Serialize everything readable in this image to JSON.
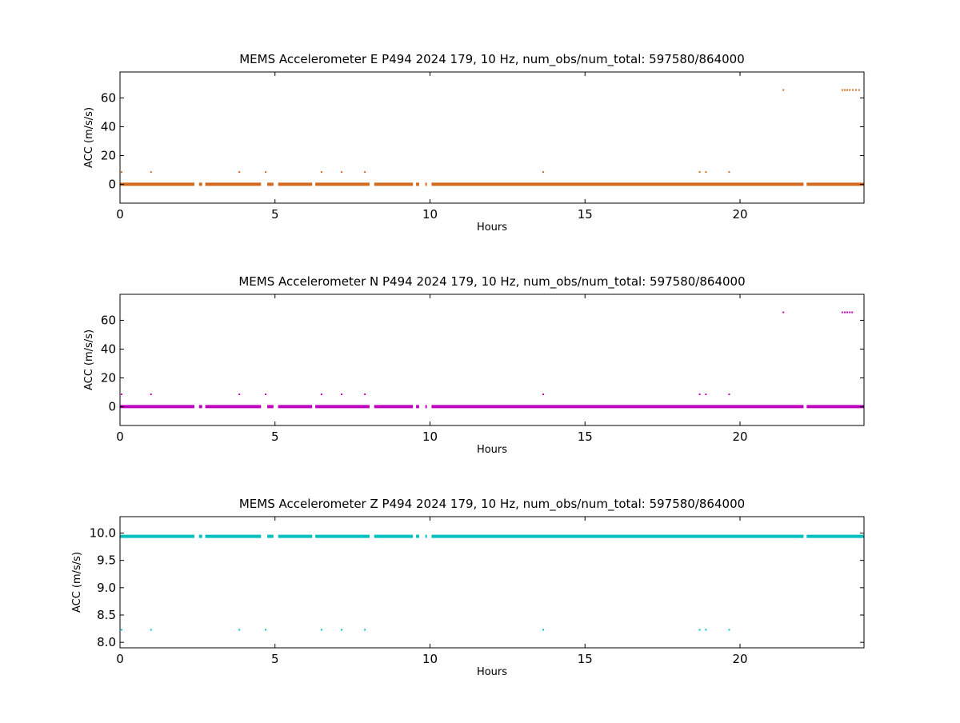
{
  "chart_data": [
    {
      "type": "scatter",
      "title": "MEMS Accelerometer E P494 2024 179, 10 Hz, num_obs/num_total: 597580/864000",
      "xlabel": "Hours",
      "ylabel": "ACC (m/s/s)",
      "xlim": [
        0,
        24
      ],
      "ylim": [
        -13,
        78
      ],
      "xticks": [
        0,
        5,
        10,
        15,
        20
      ],
      "yticks": [
        0,
        20,
        40,
        60
      ],
      "color": "#d2691e",
      "baseline": {
        "y": 0.1,
        "segments": [
          [
            0.0,
            2.4
          ],
          [
            2.55,
            2.65
          ],
          [
            2.75,
            4.55
          ],
          [
            4.75,
            4.95
          ],
          [
            5.1,
            6.2
          ],
          [
            6.3,
            8.05
          ],
          [
            8.2,
            9.45
          ],
          [
            9.55,
            9.65
          ],
          [
            9.85,
            9.9
          ],
          [
            10.05,
            22.05
          ],
          [
            22.15,
            24.0
          ]
        ]
      },
      "points": [
        {
          "x": 0.05,
          "y": 8.6
        },
        {
          "x": 1.0,
          "y": 8.6
        },
        {
          "x": 3.85,
          "y": 8.6
        },
        {
          "x": 4.7,
          "y": 8.6
        },
        {
          "x": 6.5,
          "y": 8.6
        },
        {
          "x": 7.15,
          "y": 8.6
        },
        {
          "x": 7.9,
          "y": 8.6
        },
        {
          "x": 13.65,
          "y": 8.6
        },
        {
          "x": 18.7,
          "y": 8.6
        },
        {
          "x": 18.9,
          "y": 8.6
        },
        {
          "x": 19.65,
          "y": 8.6
        },
        {
          "x": 21.4,
          "y": 65.5
        },
        {
          "x": 23.3,
          "y": 65.5
        },
        {
          "x": 23.38,
          "y": 65.5
        },
        {
          "x": 23.46,
          "y": 65.5
        },
        {
          "x": 23.54,
          "y": 65.5
        },
        {
          "x": 23.64,
          "y": 65.5
        },
        {
          "x": 23.74,
          "y": 65.5
        },
        {
          "x": 23.84,
          "y": 65.5
        }
      ]
    },
    {
      "type": "scatter",
      "title": "MEMS Accelerometer N P494 2024 179, 10 Hz, num_obs/num_total: 597580/864000",
      "xlabel": "Hours",
      "ylabel": "ACC (m/s/s)",
      "xlim": [
        0,
        24
      ],
      "ylim": [
        -13,
        78
      ],
      "xticks": [
        0,
        5,
        10,
        15,
        20
      ],
      "yticks": [
        0,
        20,
        40,
        60
      ],
      "color": "#bf00bf",
      "baseline": {
        "y": 0.1,
        "segments": [
          [
            0.0,
            2.4
          ],
          [
            2.55,
            2.65
          ],
          [
            2.75,
            4.55
          ],
          [
            4.75,
            4.95
          ],
          [
            5.1,
            6.2
          ],
          [
            6.3,
            8.05
          ],
          [
            8.2,
            9.45
          ],
          [
            9.55,
            9.65
          ],
          [
            9.85,
            9.9
          ],
          [
            10.05,
            22.05
          ],
          [
            22.15,
            24.0
          ]
        ]
      },
      "points": [
        {
          "x": 0.05,
          "y": 8.6
        },
        {
          "x": 1.0,
          "y": 8.6
        },
        {
          "x": 3.85,
          "y": 8.6
        },
        {
          "x": 4.7,
          "y": 8.6
        },
        {
          "x": 6.5,
          "y": 8.6
        },
        {
          "x": 7.15,
          "y": 8.6
        },
        {
          "x": 7.9,
          "y": 8.6
        },
        {
          "x": 13.65,
          "y": 8.6
        },
        {
          "x": 18.7,
          "y": 8.6
        },
        {
          "x": 18.9,
          "y": 8.6
        },
        {
          "x": 19.65,
          "y": 8.6
        },
        {
          "x": 21.4,
          "y": 65.5
        },
        {
          "x": 23.3,
          "y": 65.5
        },
        {
          "x": 23.38,
          "y": 65.5
        },
        {
          "x": 23.46,
          "y": 65.5
        },
        {
          "x": 23.54,
          "y": 65.5
        },
        {
          "x": 23.62,
          "y": 65.5
        }
      ]
    },
    {
      "type": "scatter",
      "title": "MEMS Accelerometer Z P494 2024 179, 10 Hz, num_obs/num_total: 597580/864000",
      "xlabel": "Hours",
      "ylabel": "ACC (m/s/s)",
      "xlim": [
        0,
        24
      ],
      "ylim": [
        7.9,
        10.3
      ],
      "xticks": [
        0,
        5,
        10,
        15,
        20
      ],
      "yticks": [
        8.0,
        8.5,
        9.0,
        9.5,
        10.0
      ],
      "ytick_labels": [
        "8.0",
        "8.5",
        "9.0",
        "9.5",
        "10.0"
      ],
      "color": "#00bfbf",
      "baseline": {
        "y": 9.94,
        "segments": [
          [
            0.0,
            2.4
          ],
          [
            2.55,
            2.65
          ],
          [
            2.75,
            4.55
          ],
          [
            4.75,
            4.95
          ],
          [
            5.1,
            6.2
          ],
          [
            6.3,
            8.05
          ],
          [
            8.2,
            9.45
          ],
          [
            9.55,
            9.65
          ],
          [
            9.85,
            9.9
          ],
          [
            10.05,
            22.05
          ],
          [
            22.15,
            24.0
          ]
        ]
      },
      "points": [
        {
          "x": 0.05,
          "y": 8.23
        },
        {
          "x": 1.0,
          "y": 8.23
        },
        {
          "x": 3.85,
          "y": 8.23
        },
        {
          "x": 4.7,
          "y": 8.23
        },
        {
          "x": 6.5,
          "y": 8.23
        },
        {
          "x": 7.15,
          "y": 8.23
        },
        {
          "x": 7.9,
          "y": 8.23
        },
        {
          "x": 13.65,
          "y": 8.23
        },
        {
          "x": 18.7,
          "y": 8.23
        },
        {
          "x": 18.9,
          "y": 8.23
        },
        {
          "x": 19.65,
          "y": 8.23
        }
      ]
    }
  ]
}
